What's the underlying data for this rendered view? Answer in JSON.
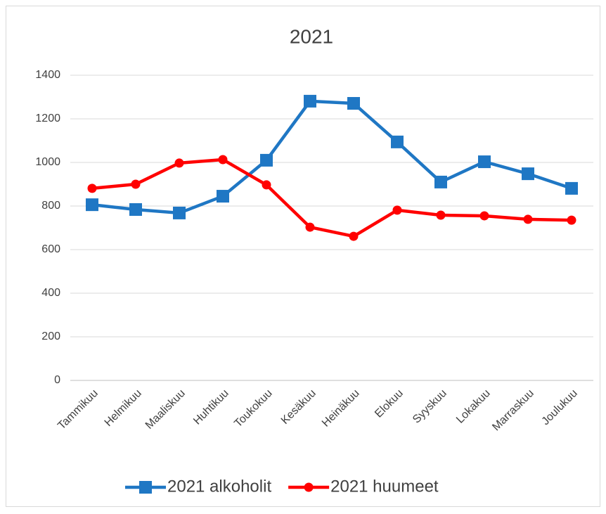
{
  "chart_data": {
    "type": "line",
    "title": "2021",
    "categories": [
      "Tammikuu",
      "Helmikuu",
      "Maaliskuu",
      "Huhtikuu",
      "Toukokuu",
      "Kesäkuu",
      "Heinäkuu",
      "Elokuu",
      "Syyskuu",
      "Lokakuu",
      "Marraskuu",
      "Joulukuu"
    ],
    "series": [
      {
        "name": "2021 alkoholit",
        "color": "#1f77c4",
        "marker": "square",
        "values": [
          806,
          784,
          768,
          845,
          1010,
          1281,
          1271,
          1094,
          910,
          1003,
          948,
          881
        ]
      },
      {
        "name": "2021 huumeet",
        "color": "#ff0000",
        "marker": "circle",
        "values": [
          881,
          900,
          997,
          1013,
          897,
          703,
          661,
          781,
          758,
          755,
          739,
          735
        ]
      }
    ],
    "ylim": [
      0,
      1400
    ],
    "yticks": [
      0,
      200,
      400,
      600,
      800,
      1000,
      1200,
      1400
    ],
    "grid": true,
    "legend": "bottom"
  }
}
